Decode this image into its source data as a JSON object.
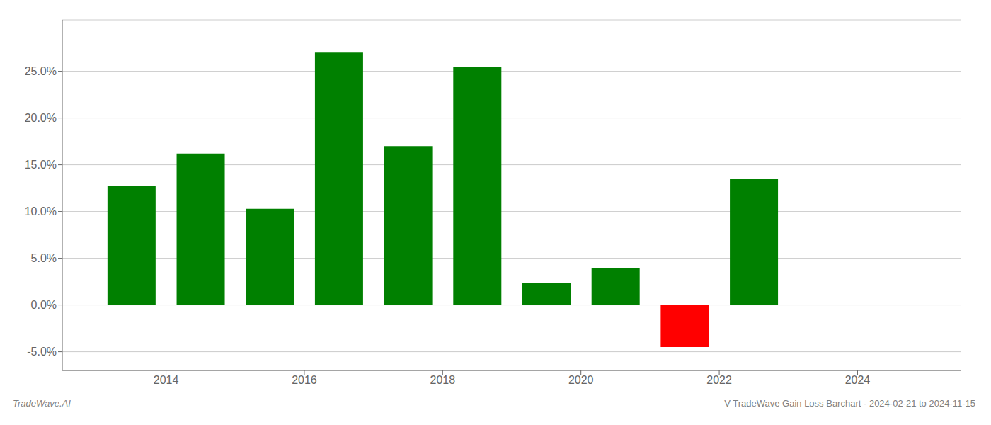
{
  "chart_data": {
    "type": "bar",
    "x": [
      2013.5,
      2014.5,
      2015.5,
      2016.5,
      2017.5,
      2018.5,
      2019.5,
      2020.5,
      2021.5,
      2022.5
    ],
    "values": [
      0.127,
      0.162,
      0.103,
      0.27,
      0.17,
      0.255,
      0.024,
      0.039,
      -0.045,
      0.135
    ],
    "colors": [
      "#008000",
      "#008000",
      "#008000",
      "#008000",
      "#008000",
      "#008000",
      "#008000",
      "#008000",
      "#ff0000",
      "#008000"
    ],
    "xlim": [
      2012.5,
      2025.5
    ],
    "xticks": [
      2014,
      2016,
      2018,
      2020,
      2022,
      2024
    ],
    "ylim": [
      -0.07,
      0.305
    ],
    "yticks": [
      {
        "value": -0.05,
        "label": "-5.0%"
      },
      {
        "value": 0.0,
        "label": "0.0%"
      },
      {
        "value": 0.05,
        "label": "5.0%"
      },
      {
        "value": 0.1,
        "label": "10.0%"
      },
      {
        "value": 0.15,
        "label": "15.0%"
      },
      {
        "value": 0.2,
        "label": "20.0%"
      },
      {
        "value": 0.25,
        "label": "25.0%"
      }
    ],
    "grid": true,
    "annotations": [
      "TradeWave.AI",
      "V TradeWave Gain Loss Barchart - 2024-02-21 to 2024-11-15"
    ]
  }
}
